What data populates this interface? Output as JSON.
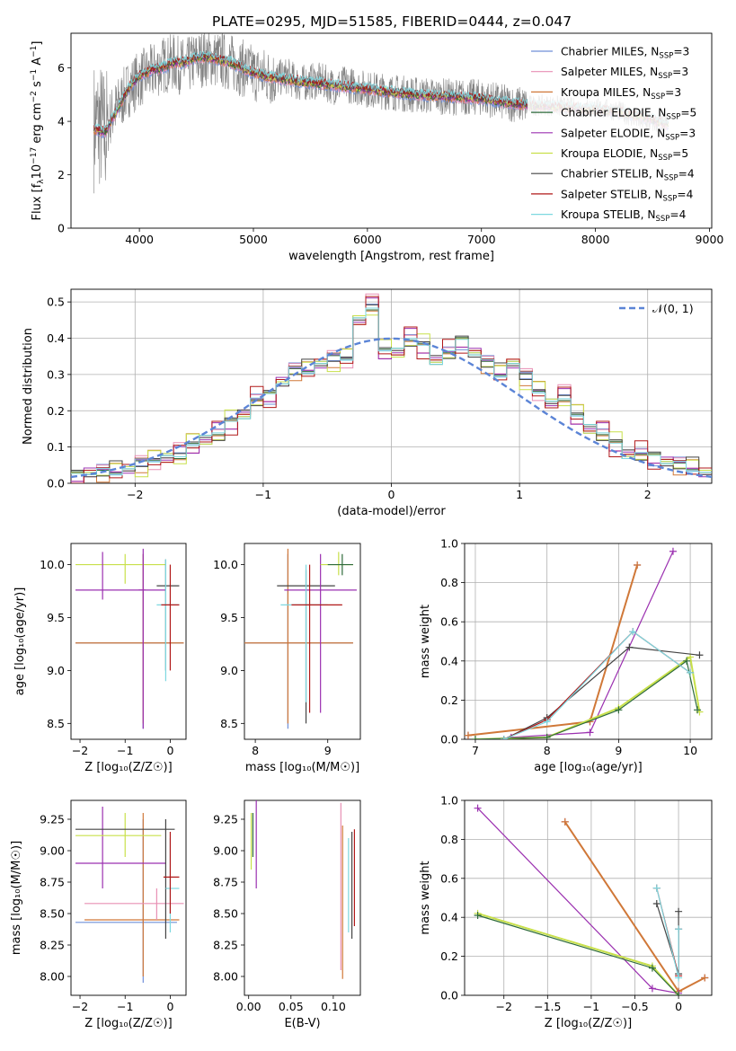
{
  "figure_title": "PLATE=0295, MJD=51585, FIBERID=0444, z=0.047",
  "models": [
    {
      "name": "Chabrier MILES",
      "nssp": "3",
      "color": "#6f8fd8"
    },
    {
      "name": "Salpeter MILES",
      "nssp": "3",
      "color": "#e88fb4"
    },
    {
      "name": "Kroupa MILES",
      "nssp": "3",
      "color": "#d07838"
    },
    {
      "name": "Chabrier ELODIE",
      "nssp": "5",
      "color": "#2e6b3a"
    },
    {
      "name": "Salpeter ELODIE",
      "nssp": "3",
      "color": "#9b30b0"
    },
    {
      "name": "Kroupa ELODIE",
      "nssp": "5",
      "color": "#c8e04a"
    },
    {
      "name": "Chabrier STELIB",
      "nssp": "4",
      "color": "#444444"
    },
    {
      "name": "Salpeter STELIB",
      "nssp": "4",
      "color": "#b01818"
    },
    {
      "name": "Kroupa STELIB",
      "nssp": "4",
      "color": "#7dd8e0"
    }
  ],
  "chart_data": [
    {
      "id": "spectrum",
      "type": "line",
      "title": "PLATE=0295, MJD=51585, FIBERID=0444, z=0.047",
      "xlabel": "wavelength [Angstrom, rest frame]",
      "ylabel": "Flux [f_λ 10^-17 erg cm^-2 s^-1 A^-1]",
      "xlim": [
        3400,
        9020
      ],
      "ylim": [
        0,
        7.3
      ],
      "xticks": [
        4000,
        5000,
        6000,
        7000,
        8000,
        9000
      ],
      "yticks": [
        0,
        2,
        4,
        6
      ],
      "grid": false,
      "legend": "right",
      "data_color": "#808080",
      "data_x": [
        3600,
        3650,
        3700,
        3750,
        3800,
        3900,
        4000,
        4100,
        4200,
        4300,
        4400,
        4500,
        4600,
        4700,
        4800,
        4900,
        5000,
        5100,
        5200,
        5300,
        5400,
        5500,
        5600,
        5700,
        5800,
        5900,
        6000,
        6200,
        6400,
        6600,
        6800,
        7000,
        7200,
        7400,
        7600,
        7800,
        8000,
        8200,
        8400,
        8600
      ],
      "data_y": [
        3.8,
        3.9,
        3.5,
        4.2,
        4.5,
        5.2,
        5.6,
        5.8,
        6.1,
        6.2,
        6.0,
        6.3,
        6.4,
        6.3,
        6.2,
        6.0,
        5.8,
        5.7,
        5.6,
        5.7,
        5.4,
        5.5,
        5.5,
        5.3,
        5.4,
        5.3,
        5.2,
        5.1,
        5.0,
        4.95,
        4.9,
        4.9,
        4.7,
        4.6,
        4.6,
        4.5,
        4.5,
        4.4,
        4.0,
        3.9
      ],
      "model_x": [
        3600,
        3700,
        3800,
        3900,
        4000,
        4100,
        4200,
        4300,
        4400,
        4500,
        4600,
        4700,
        4800,
        4900,
        5000,
        5200,
        5400,
        5600,
        5800,
        6000,
        6200,
        6400,
        6600,
        6800,
        7000,
        7200,
        7400,
        7600,
        7800,
        8000,
        8200,
        8400,
        8600
      ],
      "model_y": [
        3.7,
        3.6,
        4.4,
        5.2,
        5.7,
        5.9,
        6.0,
        6.2,
        6.2,
        6.4,
        6.4,
        6.3,
        6.2,
        6.0,
        5.8,
        5.6,
        5.5,
        5.4,
        5.3,
        5.2,
        5.1,
        5.0,
        4.95,
        4.9,
        4.85,
        4.7,
        4.6,
        4.55,
        4.5,
        4.45,
        4.35,
        4.2,
        3.9
      ]
    },
    {
      "id": "residuals",
      "type": "line",
      "xlabel": "(data-model)/error",
      "ylabel": "Normed distribution",
      "xlim": [
        -2.5,
        2.5
      ],
      "ylim": [
        0,
        0.535
      ],
      "xticks": [
        -2,
        -1,
        0,
        1,
        2
      ],
      "yticks": [
        0.0,
        0.1,
        0.2,
        0.3,
        0.4,
        0.5
      ],
      "grid": true,
      "legend": "top-right",
      "gauss_label": "𝒩(0, 1)",
      "gauss_color": "#5b84d6",
      "bin_edges": [
        -2.5,
        -2.4,
        -2.3,
        -2.2,
        -2.1,
        -2.0,
        -1.9,
        -1.8,
        -1.7,
        -1.6,
        -1.5,
        -1.4,
        -1.3,
        -1.2,
        -1.1,
        -1.0,
        -0.9,
        -0.8,
        -0.7,
        -0.6,
        -0.5,
        -0.4,
        -0.3,
        -0.2,
        -0.1,
        0.0,
        0.1,
        0.2,
        0.3,
        0.4,
        0.5,
        0.6,
        0.7,
        0.8,
        0.9,
        1.0,
        1.1,
        1.2,
        1.3,
        1.4,
        1.5,
        1.6,
        1.7,
        1.8,
        1.9,
        2.0,
        2.1,
        2.2,
        2.3,
        2.4,
        2.5
      ],
      "hist_base": [
        0.02,
        0.03,
        0.03,
        0.04,
        0.04,
        0.05,
        0.07,
        0.07,
        0.08,
        0.11,
        0.12,
        0.14,
        0.17,
        0.19,
        0.23,
        0.24,
        0.28,
        0.31,
        0.32,
        0.33,
        0.34,
        0.35,
        0.45,
        0.49,
        0.37,
        0.36,
        0.4,
        0.38,
        0.34,
        0.36,
        0.39,
        0.36,
        0.33,
        0.31,
        0.33,
        0.29,
        0.26,
        0.22,
        0.24,
        0.19,
        0.15,
        0.14,
        0.11,
        0.08,
        0.08,
        0.07,
        0.06,
        0.05,
        0.05,
        0.03
      ]
    },
    {
      "id": "z-vs-age",
      "type": "scatter",
      "xlabel": "Z [log₁₀(Z/Z☉)]",
      "ylabel": "age  [log₁₀(age/yr)]",
      "xlim": [
        -2.2,
        0.35
      ],
      "ylim": [
        8.35,
        10.2
      ],
      "xticks": [
        -2,
        -1,
        0
      ],
      "yticks": [
        8.5,
        9.0,
        9.5,
        10.0
      ],
      "points": [
        {
          "c": 0,
          "x": -0.6,
          "xl": -2.1,
          "xh": 0.3,
          "y": 9.26,
          "yl": 8.45,
          "yh": 10.1
        },
        {
          "c": 2,
          "x": -0.6,
          "xl": -2.1,
          "xh": 0.3,
          "y": 9.26,
          "yl": 8.5,
          "yh": 10.1
        },
        {
          "c": 5,
          "x": -1.0,
          "xl": -2.1,
          "xh": -0.1,
          "y": 10.0,
          "yl": 9.82,
          "yh": 10.1
        },
        {
          "c": 4,
          "x": -1.5,
          "xl": -2.1,
          "xh": -0.1,
          "y": 9.76,
          "yl": 9.67,
          "yh": 10.12
        },
        {
          "c": 4,
          "x": -0.6,
          "xl": -0.7,
          "xh": -0.55,
          "y": 9.76,
          "yl": 8.45,
          "yh": 10.15
        },
        {
          "c": 6,
          "x": -0.1,
          "xl": -0.3,
          "xh": 0.2,
          "y": 9.8,
          "yl": 9.0,
          "yh": 10.05
        },
        {
          "c": 8,
          "x": -0.1,
          "xl": -0.3,
          "xh": 0.2,
          "y": 9.62,
          "yl": 8.9,
          "yh": 10.05
        },
        {
          "c": 7,
          "x": 0.0,
          "xl": -0.2,
          "xh": 0.2,
          "y": 9.62,
          "yl": 9.0,
          "yh": 10.0
        }
      ]
    },
    {
      "id": "mass-vs-age",
      "type": "scatter",
      "xlabel": "mass [log₁₀(M/M☉)]",
      "ylabel": "",
      "xlim": [
        7.85,
        9.45
      ],
      "ylim": [
        8.35,
        10.2
      ],
      "xticks": [
        8,
        9
      ],
      "yticks": [
        8.5,
        9.0,
        9.5,
        10.0
      ],
      "points": [
        {
          "c": 0,
          "x": 8.45,
          "xl": 7.85,
          "xh": 9.35,
          "y": 9.26,
          "yl": 8.45,
          "yh": 10.1
        },
        {
          "c": 2,
          "x": 8.45,
          "xl": 7.85,
          "xh": 9.35,
          "y": 9.26,
          "yl": 8.5,
          "yh": 10.15
        },
        {
          "c": 6,
          "x": 8.7,
          "xl": 8.3,
          "xh": 9.1,
          "y": 9.8,
          "yl": 8.5,
          "yh": 9.95
        },
        {
          "c": 4,
          "x": 8.9,
          "xl": 8.4,
          "xh": 9.4,
          "y": 9.76,
          "yl": 8.6,
          "yh": 10.1
        },
        {
          "c": 8,
          "x": 8.7,
          "xl": 8.35,
          "xh": 9.0,
          "y": 9.62,
          "yl": 8.7,
          "yh": 10.0
        },
        {
          "c": 7,
          "x": 8.75,
          "xl": 8.5,
          "xh": 9.2,
          "y": 9.62,
          "yl": 8.6,
          "yh": 10.0
        },
        {
          "c": 5,
          "x": 9.15,
          "xl": 8.9,
          "xh": 9.35,
          "y": 10.0,
          "yl": 9.9,
          "yh": 10.12
        },
        {
          "c": 3,
          "x": 9.2,
          "xl": 9.0,
          "xh": 9.35,
          "y": 10.0,
          "yl": 9.9,
          "yh": 10.1
        }
      ]
    },
    {
      "id": "age-vs-weight",
      "type": "line",
      "xlabel": "age  [log₁₀(age/yr)]",
      "ylabel": "mass weight",
      "xlim": [
        6.85,
        10.3
      ],
      "ylim": [
        0,
        1.0
      ],
      "xticks": [
        7,
        8,
        9,
        10
      ],
      "yticks": [
        0.0,
        0.2,
        0.4,
        0.6,
        0.8,
        1.0
      ],
      "grid": true,
      "series": [
        {
          "c": 0,
          "x": [
            6.9,
            8.6,
            9.26
          ],
          "y": [
            0.02,
            0.09,
            0.89
          ]
        },
        {
          "c": 1,
          "x": [
            6.9,
            8.6,
            9.26
          ],
          "y": [
            0.02,
            0.09,
            0.89
          ]
        },
        {
          "c": 2,
          "x": [
            6.9,
            8.6,
            9.26
          ],
          "y": [
            0.02,
            0.09,
            0.89
          ]
        },
        {
          "c": 4,
          "x": [
            7.5,
            8.6,
            9.76
          ],
          "y": [
            0.01,
            0.035,
            0.96
          ]
        },
        {
          "c": 5,
          "x": [
            7.0,
            8.0,
            9.0,
            10.0,
            10.13
          ],
          "y": [
            0.0,
            0.01,
            0.16,
            0.42,
            0.14
          ]
        },
        {
          "c": 3,
          "x": [
            7.0,
            8.0,
            9.0,
            9.95,
            10.1
          ],
          "y": [
            0.0,
            0.01,
            0.15,
            0.4,
            0.15
          ]
        },
        {
          "c": 6,
          "x": [
            7.4,
            8.0,
            9.15,
            10.13
          ],
          "y": [
            0.0,
            0.11,
            0.47,
            0.43
          ]
        },
        {
          "c": 7,
          "x": [
            7.4,
            8.0,
            9.2,
            10.0
          ],
          "y": [
            0.0,
            0.1,
            0.55,
            0.34
          ]
        },
        {
          "c": 8,
          "x": [
            7.4,
            8.0,
            9.2,
            10.0
          ],
          "y": [
            0.0,
            0.09,
            0.55,
            0.34
          ]
        }
      ]
    },
    {
      "id": "z-vs-mass",
      "type": "scatter",
      "xlabel": "Z [log₁₀(Z/Z☉)]",
      "ylabel": "mass [log₁₀(M/M☉)]",
      "xlim": [
        -2.2,
        0.35
      ],
      "ylim": [
        7.85,
        9.4
      ],
      "xticks": [
        -2,
        -1,
        0
      ],
      "yticks": [
        8.0,
        8.25,
        8.5,
        8.75,
        9.0,
        9.25
      ],
      "points": [
        {
          "c": 0,
          "x": -0.6,
          "xl": -2.1,
          "xh": 0.15,
          "y": 8.43,
          "yl": 7.95,
          "yh": 9.25
        },
        {
          "c": 2,
          "x": -0.6,
          "xl": -1.9,
          "xh": 0.2,
          "y": 8.45,
          "yl": 8.0,
          "yh": 9.3
        },
        {
          "c": 1,
          "x": -0.3,
          "xl": -1.9,
          "xh": 0.3,
          "y": 8.58,
          "yl": 8.45,
          "yh": 8.7
        },
        {
          "c": 4,
          "x": -1.5,
          "xl": -2.1,
          "xh": -0.1,
          "y": 8.9,
          "yl": 8.7,
          "yh": 9.35
        },
        {
          "c": 5,
          "x": -1.0,
          "xl": -2.1,
          "xh": -0.2,
          "y": 9.12,
          "yl": 8.95,
          "yh": 9.3
        },
        {
          "c": 6,
          "x": -0.1,
          "xl": -2.1,
          "xh": 0.1,
          "y": 9.17,
          "yl": 8.3,
          "yh": 9.25
        },
        {
          "c": 8,
          "x": 0.0,
          "xl": -0.1,
          "xh": 0.2,
          "y": 8.7,
          "yl": 8.35,
          "yh": 9.1
        },
        {
          "c": 7,
          "x": 0.0,
          "xl": -0.15,
          "xh": 0.2,
          "y": 8.79,
          "yl": 8.5,
          "yh": 9.15
        }
      ]
    },
    {
      "id": "ebv-vs-mass",
      "type": "scatter",
      "xlabel": "E(B-V)",
      "ylabel": "",
      "xlim": [
        -0.005,
        0.132
      ],
      "ylim": [
        7.85,
        9.4
      ],
      "xticks": [
        0.0,
        0.05,
        0.1
      ],
      "xtick_labels": [
        "0.00",
        "0.05",
        "0.10"
      ],
      "yticks": [
        8.0,
        8.25,
        8.5,
        8.75,
        9.0,
        9.25
      ],
      "points": [
        {
          "c": 5,
          "x": 0.003,
          "yl": 8.85,
          "yh": 9.3
        },
        {
          "c": 3,
          "x": 0.005,
          "yl": 8.95,
          "yh": 9.3
        },
        {
          "c": 4,
          "x": 0.009,
          "yl": 8.7,
          "yh": 9.4
        },
        {
          "c": 1,
          "x": 0.109,
          "yl": 8.05,
          "yh": 9.38
        },
        {
          "c": 2,
          "x": 0.111,
          "yl": 7.98,
          "yh": 9.2
        },
        {
          "c": 8,
          "x": 0.118,
          "yl": 8.35,
          "yh": 9.1
        },
        {
          "c": 6,
          "x": 0.122,
          "yl": 8.3,
          "yh": 9.15
        },
        {
          "c": 7,
          "x": 0.125,
          "yl": 8.4,
          "yh": 9.17
        }
      ]
    },
    {
      "id": "z-vs-weight",
      "type": "line",
      "xlabel": "Z [log₁₀(Z/Z☉)]",
      "ylabel": "mass weight",
      "xlim": [
        -2.45,
        0.38
      ],
      "ylim": [
        0,
        1.0
      ],
      "xticks": [
        -2.0,
        -1.5,
        -1.0,
        -0.5,
        0.0
      ],
      "yticks": [
        0.0,
        0.2,
        0.4,
        0.6,
        0.8,
        1.0
      ],
      "grid": true,
      "series": [
        {
          "c": 0,
          "x": [
            -1.3,
            0.0,
            0.3
          ],
          "y": [
            0.89,
            0.02,
            0.09
          ]
        },
        {
          "c": 1,
          "x": [
            -1.3,
            0.0,
            0.3
          ],
          "y": [
            0.89,
            0.02,
            0.09
          ]
        },
        {
          "c": 2,
          "x": [
            -1.3,
            0.0,
            0.3
          ],
          "y": [
            0.89,
            0.02,
            0.09
          ]
        },
        {
          "c": 4,
          "x": [
            -2.3,
            -0.3,
            0.0
          ],
          "y": [
            0.96,
            0.035,
            0.01
          ]
        },
        {
          "c": 5,
          "x": [
            -2.3,
            -0.3,
            0.0
          ],
          "y": [
            0.42,
            0.15,
            0.0
          ]
        },
        {
          "c": 3,
          "x": [
            -2.3,
            -0.3,
            0.0
          ],
          "y": [
            0.41,
            0.14,
            0.0
          ]
        },
        {
          "c": 6,
          "x": [
            -0.25,
            0.0,
            0.0
          ],
          "y": [
            0.47,
            0.11,
            0.43
          ]
        },
        {
          "c": 7,
          "x": [
            -0.25,
            0.0,
            0.0
          ],
          "y": [
            0.55,
            0.1,
            0.34
          ]
        },
        {
          "c": 8,
          "x": [
            -0.25,
            0.0,
            0.0
          ],
          "y": [
            0.55,
            0.09,
            0.34
          ]
        }
      ]
    }
  ]
}
